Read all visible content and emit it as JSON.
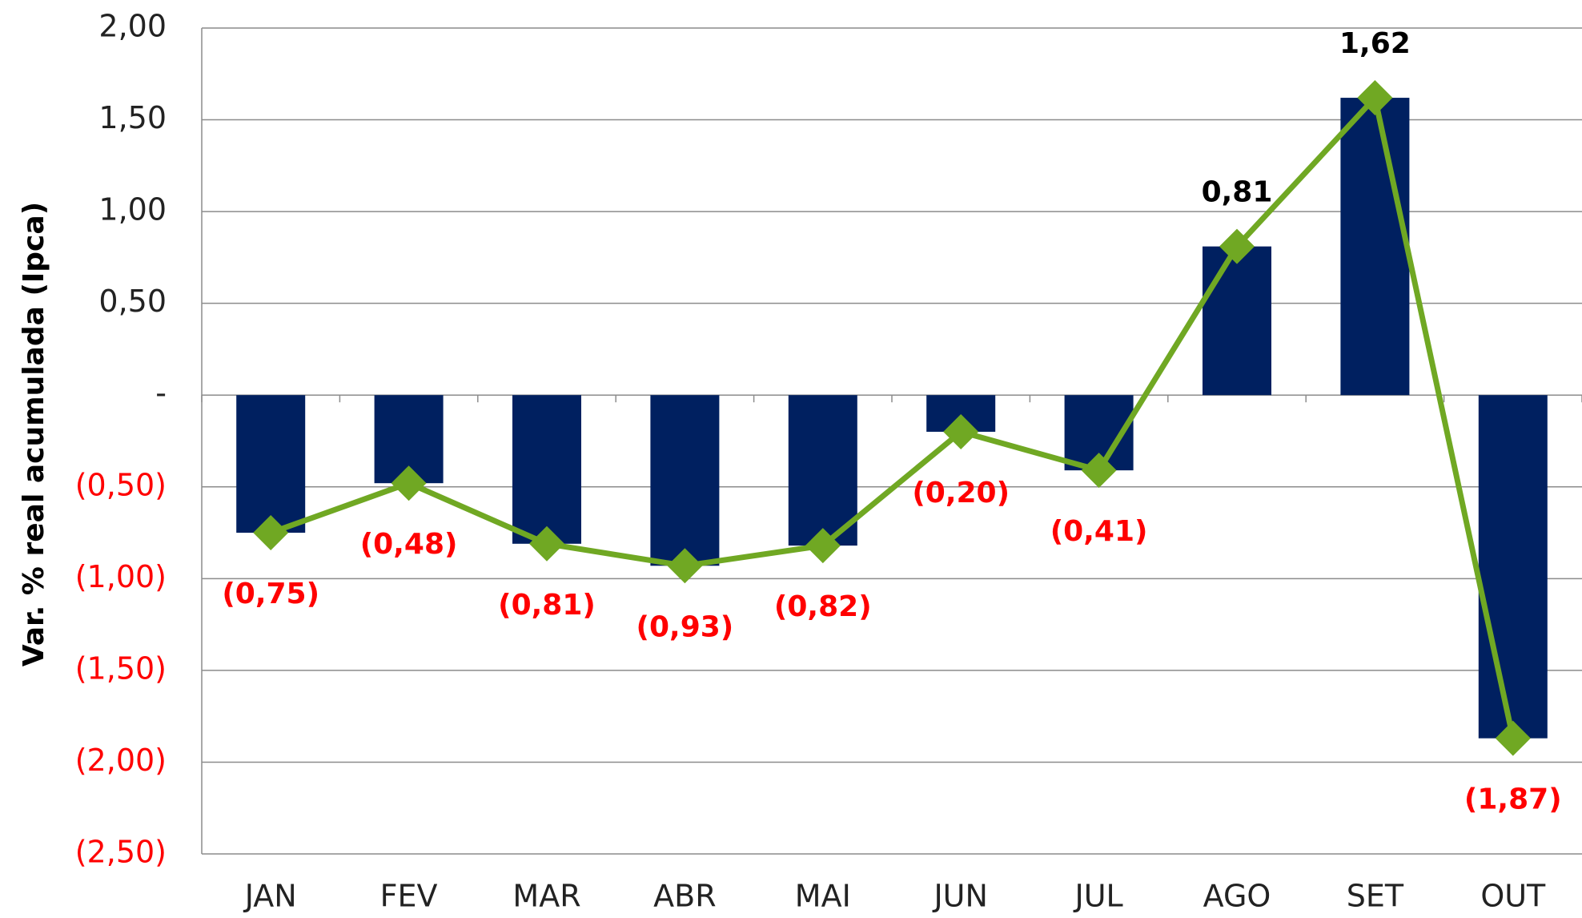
{
  "chart_data": {
    "type": "combo",
    "y_label": "Var. % real acumulada (Ipca)",
    "categories": [
      "JAN",
      "FEV",
      "MAR",
      "ABR",
      "MAI",
      "JUN",
      "JUL",
      "AGO",
      "SET",
      "OUT"
    ],
    "series": [
      {
        "type": "bar",
        "color": "#002060",
        "values": [
          -0.75,
          -0.48,
          -0.81,
          -0.93,
          -0.82,
          -0.2,
          -0.41,
          0.81,
          1.62,
          -1.87
        ]
      },
      {
        "type": "line",
        "color": "#70a823",
        "values": [
          -0.75,
          -0.48,
          -0.81,
          -0.93,
          -0.82,
          -0.2,
          -0.41,
          0.81,
          1.62,
          -1.87
        ],
        "value_labels": [
          "(0,75)",
          "(0,48)",
          "(0,81)",
          "(0,93)",
          "(0,82)",
          "(0,20)",
          "(0,41)",
          "0,81",
          "1,62",
          "(1,87)"
        ]
      }
    ],
    "ylim": [
      -2.5,
      2.0
    ],
    "yticks": [
      {
        "value": 2.0,
        "label": "2,00"
      },
      {
        "value": 1.5,
        "label": "1,50"
      },
      {
        "value": 1.0,
        "label": "1,00"
      },
      {
        "value": 0.5,
        "label": "0,50"
      },
      {
        "value": 0,
        "label": "-"
      },
      {
        "value": -0.5,
        "label": "(0,50)"
      },
      {
        "value": -1.0,
        "label": "(1,00)"
      },
      {
        "value": -1.5,
        "label": "(1,50)"
      },
      {
        "value": -2.0,
        "label": "(2,00)"
      },
      {
        "value": -2.5,
        "label": "(2,50)"
      }
    ],
    "grid": true,
    "negative_color": "#ff0000",
    "positive_color": "#000000"
  }
}
